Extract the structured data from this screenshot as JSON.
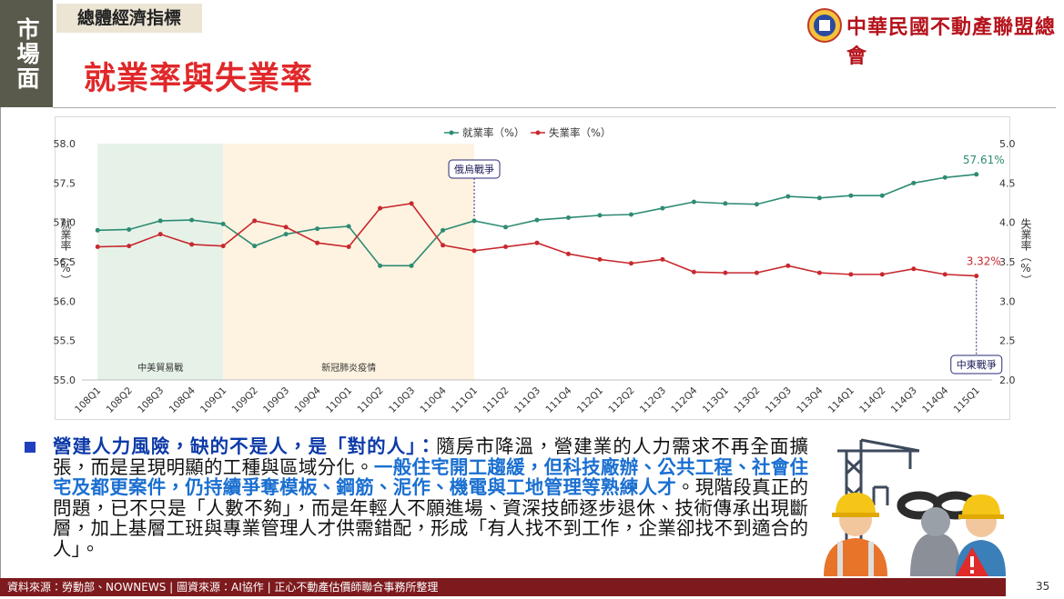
{
  "sidebar": "市場面",
  "header": {
    "section": "總體經濟指標",
    "title": "就業率與失業率",
    "org": "中華民國不動產聯盟總會"
  },
  "chart_data": {
    "type": "line",
    "categories": [
      "108Q1",
      "108Q2",
      "108Q3",
      "108Q4",
      "109Q1",
      "109Q2",
      "109Q3",
      "109Q4",
      "110Q1",
      "110Q2",
      "110Q3",
      "110Q4",
      "111Q1",
      "111Q2",
      "111Q3",
      "111Q4",
      "112Q1",
      "112Q2",
      "112Q3",
      "112Q4",
      "113Q1",
      "113Q2",
      "113Q3",
      "113Q4",
      "114Q1",
      "114Q2",
      "114Q3",
      "114Q4",
      "115Q1"
    ],
    "series": [
      {
        "name": "就業率（%）",
        "color": "#2e8b74",
        "values": [
          56.9,
          56.91,
          57.02,
          57.03,
          56.98,
          56.7,
          56.85,
          56.92,
          56.95,
          56.45,
          56.45,
          56.9,
          57.02,
          56.94,
          57.03,
          57.06,
          57.09,
          57.1,
          57.18,
          57.26,
          57.24,
          57.23,
          57.33,
          57.31,
          57.34,
          57.34,
          57.5,
          57.57,
          57.61
        ],
        "value_labels": [
          null,
          null,
          null,
          null,
          null,
          null,
          null,
          null,
          null,
          null,
          null,
          null,
          null,
          null,
          null,
          null,
          null,
          null,
          null,
          null,
          null,
          null,
          null,
          null,
          null,
          null,
          null,
          null,
          "57.61%"
        ]
      },
      {
        "name": "失業率（%）",
        "color": "#c8282e",
        "axis": "y2",
        "values": [
          3.69,
          3.7,
          3.85,
          3.72,
          3.7,
          4.02,
          3.94,
          3.74,
          3.69,
          4.18,
          4.24,
          3.71,
          3.64,
          3.69,
          3.74,
          3.6,
          3.53,
          3.48,
          3.53,
          3.37,
          3.36,
          3.36,
          3.45,
          3.36,
          3.34,
          3.34,
          3.41,
          3.34,
          3.32
        ],
        "value_labels": [
          null,
          null,
          null,
          null,
          null,
          null,
          null,
          null,
          null,
          null,
          null,
          null,
          null,
          null,
          null,
          null,
          null,
          null,
          null,
          null,
          null,
          null,
          null,
          null,
          null,
          null,
          null,
          null,
          "3.32%"
        ]
      }
    ],
    "y_label": "就業率（%）",
    "y2_label": "失業率（%）",
    "ylim": [
      55,
      58
    ],
    "yticks": [
      {
        "value": 55,
        "label": "55.0"
      },
      {
        "value": 55.5,
        "label": "55.5"
      },
      {
        "value": 56,
        "label": "56.0"
      },
      {
        "value": 56.5,
        "label": "56.5"
      },
      {
        "value": 57,
        "label": "57.0"
      },
      {
        "value": 57.5,
        "label": "57.5"
      },
      {
        "value": 58,
        "label": "58.0"
      }
    ],
    "y2lim": [
      2,
      5
    ],
    "y2ticks": [
      {
        "value": 2,
        "label": "2.0"
      },
      {
        "value": 2.5,
        "label": "2.5"
      },
      {
        "value": 3,
        "label": "3.0"
      },
      {
        "value": 3.5,
        "label": "3.5"
      },
      {
        "value": 4,
        "label": "4.0"
      },
      {
        "value": 4.5,
        "label": "4.5"
      },
      {
        "value": 5,
        "label": "5.0"
      }
    ],
    "grid": false,
    "legend": "top",
    "bands": [
      {
        "label": "中美貿易戰",
        "start": "108Q1",
        "end": "109Q1",
        "color": "#e6f2e8"
      },
      {
        "label": "新冠肺炎疫情",
        "start": "109Q1",
        "end": "111Q1",
        "color": "#fdf3e0"
      }
    ],
    "annotations": [
      {
        "text": "俄烏戰爭",
        "at": "111Q1",
        "placement": "top"
      },
      {
        "text": "中東戰爭",
        "at": "115Q1",
        "placement": "bottom"
      }
    ]
  },
  "body": {
    "segments": [
      {
        "text": "營建人力風險，缺的不是人，是「對的人」：",
        "emphasis": "title"
      },
      {
        "text": "隨房市降溫，營建業的人力需求不再全面擴張，而是呈現明顯的工種與區域分化。"
      },
      {
        "text": "一般住宅開工趨緩，但科技廠辦、公共工程、社會住宅及都更案件，仍持續爭奪模板、鋼筋、泥作、機電與工地管理等熟練人才",
        "emphasis": "key"
      },
      {
        "text": "。現階段真正的問題，已不只是「人數不夠」，而是年輕人不願進場、資深技師逐步退休、技術傳承出現斷層，加上基層工班與專業管理人才供需錯配，形成「有人找不到工作，企業卻找不到適合的人」。"
      }
    ]
  },
  "footer": {
    "source": "資料來源：勞動部、NOWNEWS | 圖資來源：AI協作 | 正心不動產估價師聯合事務所整理",
    "page": 35
  }
}
